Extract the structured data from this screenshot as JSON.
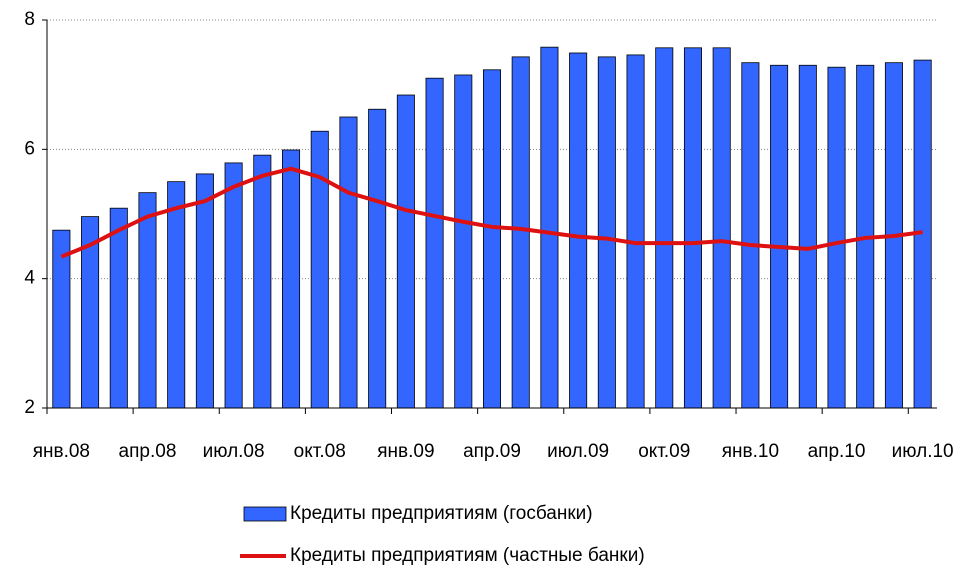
{
  "chart_data": {
    "type": "bar_line",
    "categories": [
      "янв.08",
      null,
      null,
      "апр.08",
      null,
      null,
      "июл.08",
      null,
      null,
      "окт.08",
      null,
      null,
      "янв.09",
      null,
      null,
      "апр.09",
      null,
      null,
      "июл.09",
      null,
      null,
      "окт.09",
      null,
      null,
      "янв.10",
      null,
      null,
      "апр.10",
      null,
      null,
      "июл.10"
    ],
    "series": [
      {
        "name": "Кредиты предприятиям (госбанки)",
        "type": "bar",
        "color": "#3366ff",
        "values": [
          4.75,
          4.96,
          5.09,
          5.33,
          5.5,
          5.62,
          5.79,
          5.91,
          5.99,
          6.28,
          6.5,
          6.62,
          6.84,
          7.1,
          7.15,
          7.23,
          7.43,
          7.58,
          7.49,
          7.43,
          7.46,
          7.57,
          7.57,
          7.57,
          7.34,
          7.3,
          7.3,
          7.27,
          7.3,
          7.34,
          7.38
        ]
      },
      {
        "name": "Кредиты предприятиям (частные банки)",
        "type": "line",
        "color": "#dd1111",
        "values": [
          4.34,
          4.52,
          4.75,
          4.96,
          5.09,
          5.2,
          5.42,
          5.59,
          5.7,
          5.57,
          5.33,
          5.2,
          5.06,
          4.97,
          4.88,
          4.8,
          4.77,
          4.71,
          4.65,
          4.62,
          4.55,
          4.55,
          4.55,
          4.58,
          4.52,
          4.49,
          4.46,
          4.55,
          4.63,
          4.66,
          4.72
        ]
      }
    ],
    "ylim": [
      2,
      8
    ],
    "yticks": [
      2,
      4,
      6,
      8
    ],
    "grid": true
  }
}
